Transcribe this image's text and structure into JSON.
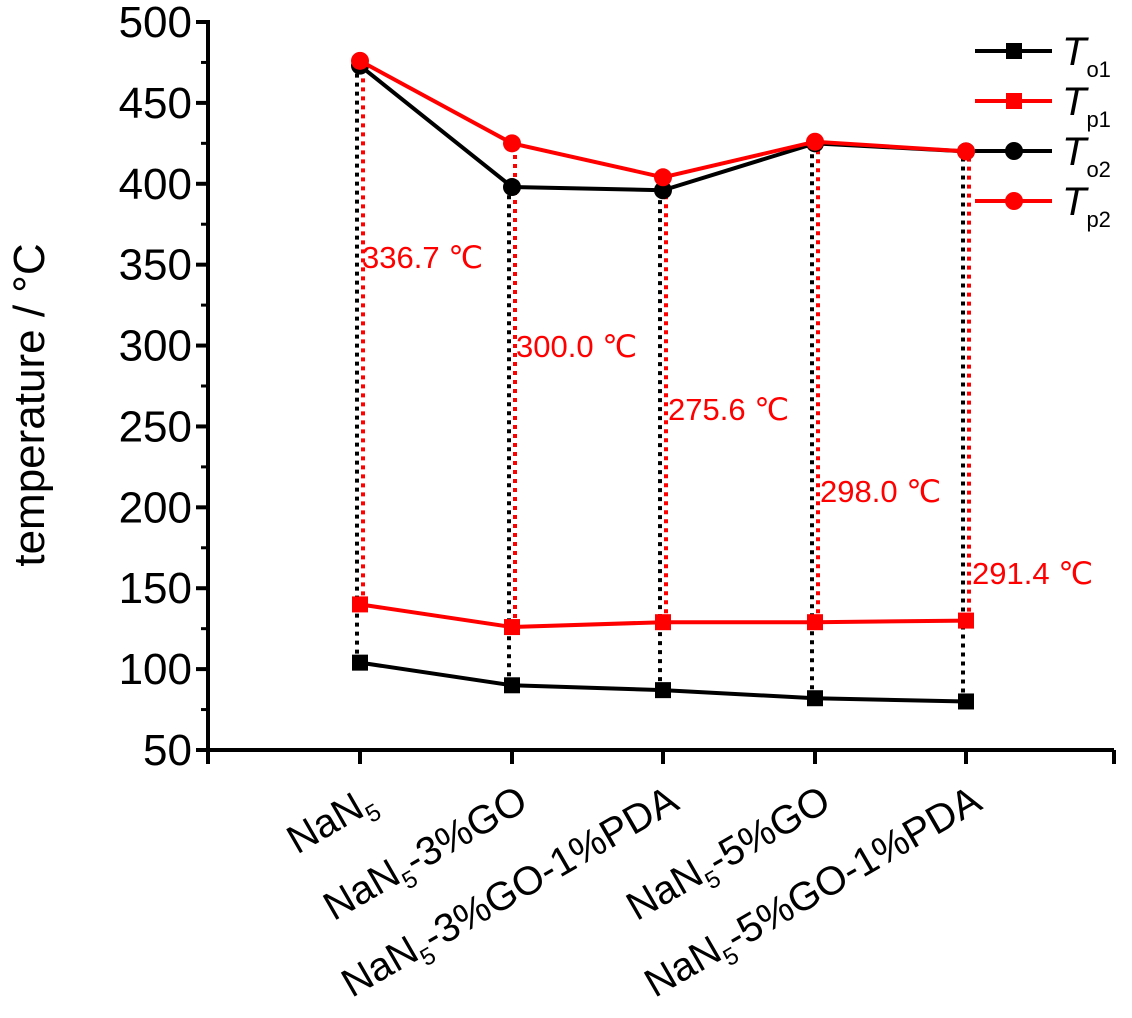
{
  "chart_data": {
    "type": "line",
    "ylabel": "temperature / °C",
    "ylim": [
      50,
      500
    ],
    "yticks": [
      "50",
      "100",
      "150",
      "200",
      "250",
      "300",
      "350",
      "400",
      "450",
      "500"
    ],
    "categories": [
      {
        "base": "NaN",
        "sub": "5",
        "rest": ""
      },
      {
        "base": "NaN",
        "sub": "5",
        "rest": "-3%GO"
      },
      {
        "base": "NaN",
        "sub": "5",
        "rest": "-3%GO-1%PDA"
      },
      {
        "base": "NaN",
        "sub": "5",
        "rest": "-5%GO"
      },
      {
        "base": "NaN",
        "sub": "5",
        "rest": "-5%GO-1%PDA"
      }
    ],
    "series": [
      {
        "name": "T",
        "sub": "o1",
        "color": "#000000",
        "marker": "square",
        "values": [
          104,
          90,
          87,
          82,
          80
        ]
      },
      {
        "name": "T",
        "sub": "p1",
        "color": "#ff0000",
        "marker": "square",
        "values": [
          140,
          126,
          129,
          129,
          130
        ]
      },
      {
        "name": "T",
        "sub": "o2",
        "color": "#000000",
        "marker": "circle",
        "values": [
          473,
          398,
          396,
          425,
          420
        ]
      },
      {
        "name": "T",
        "sub": "p2",
        "color": "#ff0000",
        "marker": "circle",
        "values": [
          476,
          425,
          404,
          426,
          420
        ]
      }
    ],
    "annotations": [
      "336.7 ℃",
      "300.0 ℃",
      "275.6 ℃",
      "298.0 ℃",
      "291.4 ℃"
    ],
    "legend_position": "top-right",
    "grid": false
  }
}
